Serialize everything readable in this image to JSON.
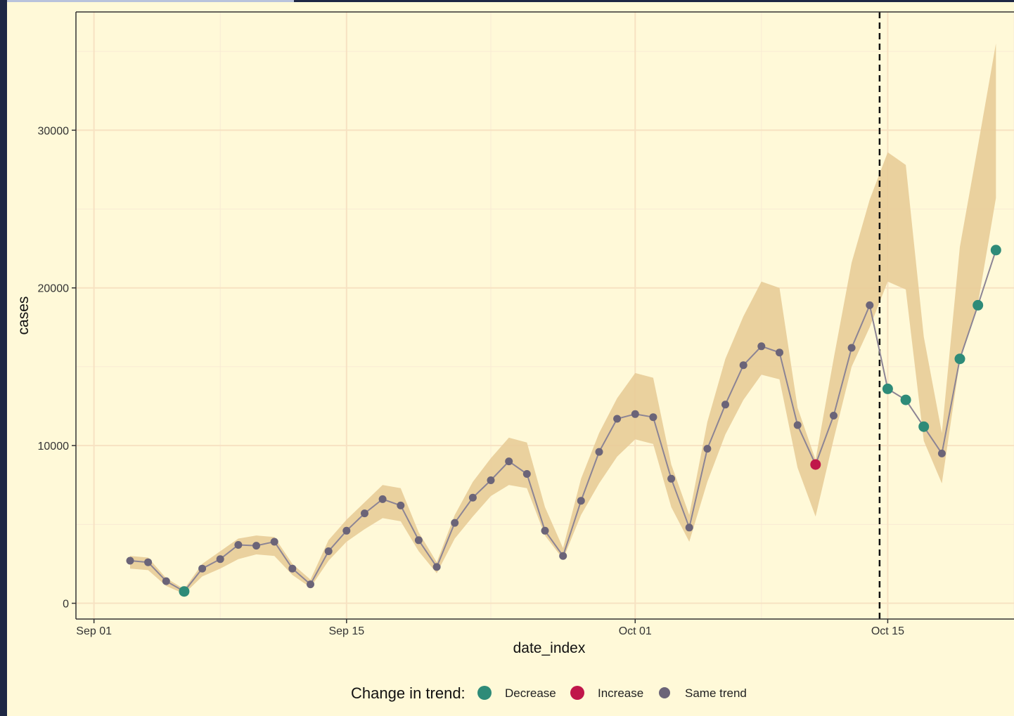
{
  "chart_data": {
    "type": "line",
    "title": "",
    "xlabel": "date_index",
    "ylabel": "cases",
    "x_tick_labels": [
      "Sep 01",
      "Sep 15",
      "Oct 01",
      "Oct 15"
    ],
    "y_tick_labels": [
      "0",
      "10000",
      "20000",
      "30000"
    ],
    "ylim": [
      -1000,
      37500
    ],
    "xlim": [
      "2020-08-31",
      "2020-10-22"
    ],
    "grid": true,
    "vline": {
      "date": "2020-10-14",
      "style": "dashed"
    },
    "legend": {
      "title": "Change in trend:",
      "placement": "bottom",
      "entries": [
        {
          "label": "Decrease",
          "color": "#2e8b78"
        },
        {
          "label": "Increase",
          "color": "#c0164a"
        },
        {
          "label": "Same trend",
          "color": "#6b6478"
        }
      ]
    },
    "colors": {
      "band": "#e8cc98",
      "line": "#8c8494",
      "panel": "#fff9d8",
      "grid": "#f7e2c2"
    },
    "series": [
      {
        "date": "2020-09-03",
        "value": 2700,
        "lower": 2200,
        "upper": 3000,
        "trend": "Same trend"
      },
      {
        "date": "2020-09-04",
        "value": 2600,
        "lower": 2100,
        "upper": 2900,
        "trend": "Same trend"
      },
      {
        "date": "2020-09-05",
        "value": 1400,
        "lower": 1100,
        "upper": 1600,
        "trend": "Same trend"
      },
      {
        "date": "2020-09-06",
        "value": 750,
        "lower": 600,
        "upper": 900,
        "trend": "Decrease"
      },
      {
        "date": "2020-09-07",
        "value": 2200,
        "lower": 1700,
        "upper": 2500,
        "trend": "Same trend"
      },
      {
        "date": "2020-09-08",
        "value": 2800,
        "lower": 2200,
        "upper": 3300,
        "trend": "Same trend"
      },
      {
        "date": "2020-09-09",
        "value": 3700,
        "lower": 2800,
        "upper": 4100,
        "trend": "Same trend"
      },
      {
        "date": "2020-09-10",
        "value": 3650,
        "lower": 3100,
        "upper": 4300,
        "trend": "Same trend"
      },
      {
        "date": "2020-09-11",
        "value": 3900,
        "lower": 3000,
        "upper": 4200,
        "trend": "Same trend"
      },
      {
        "date": "2020-09-12",
        "value": 2200,
        "lower": 1800,
        "upper": 2500,
        "trend": "Same trend"
      },
      {
        "date": "2020-09-13",
        "value": 1200,
        "lower": 1000,
        "upper": 1500,
        "trend": "Same trend"
      },
      {
        "date": "2020-09-14",
        "value": 3300,
        "lower": 2700,
        "upper": 4000,
        "trend": "Same trend"
      },
      {
        "date": "2020-09-15",
        "value": 4600,
        "lower": 3900,
        "upper": 5300,
        "trend": "Same trend"
      },
      {
        "date": "2020-09-16",
        "value": 5700,
        "lower": 4700,
        "upper": 6400,
        "trend": "Same trend"
      },
      {
        "date": "2020-09-17",
        "value": 6600,
        "lower": 5400,
        "upper": 7500,
        "trend": "Same trend"
      },
      {
        "date": "2020-09-18",
        "value": 6200,
        "lower": 5200,
        "upper": 7300,
        "trend": "Same trend"
      },
      {
        "date": "2020-09-19",
        "value": 4000,
        "lower": 3300,
        "upper": 4500,
        "trend": "Same trend"
      },
      {
        "date": "2020-09-20",
        "value": 2300,
        "lower": 1900,
        "upper": 2600,
        "trend": "Same trend"
      },
      {
        "date": "2020-09-21",
        "value": 5100,
        "lower": 4100,
        "upper": 5600,
        "trend": "Same trend"
      },
      {
        "date": "2020-09-22",
        "value": 6700,
        "lower": 5500,
        "upper": 7700,
        "trend": "Same trend"
      },
      {
        "date": "2020-09-23",
        "value": 7800,
        "lower": 6800,
        "upper": 9200,
        "trend": "Same trend"
      },
      {
        "date": "2020-09-24",
        "value": 9000,
        "lower": 7500,
        "upper": 10500,
        "trend": "Same trend"
      },
      {
        "date": "2020-09-25",
        "value": 8200,
        "lower": 7300,
        "upper": 10200,
        "trend": "Same trend"
      },
      {
        "date": "2020-09-26",
        "value": 4600,
        "lower": 4300,
        "upper": 6100,
        "trend": "Same trend"
      },
      {
        "date": "2020-09-27",
        "value": 3000,
        "lower": 2800,
        "upper": 3500,
        "trend": "Same trend"
      },
      {
        "date": "2020-09-28",
        "value": 6500,
        "lower": 5600,
        "upper": 7900,
        "trend": "Same trend"
      },
      {
        "date": "2020-09-29",
        "value": 9600,
        "lower": 7600,
        "upper": 10800,
        "trend": "Same trend"
      },
      {
        "date": "2020-09-30",
        "value": 11700,
        "lower": 9300,
        "upper": 13000,
        "trend": "Same trend"
      },
      {
        "date": "2020-10-01",
        "value": 12000,
        "lower": 10400,
        "upper": 14600,
        "trend": "Same trend"
      },
      {
        "date": "2020-10-02",
        "value": 11800,
        "lower": 10100,
        "upper": 14300,
        "trend": "Same trend"
      },
      {
        "date": "2020-10-03",
        "value": 7900,
        "lower": 6100,
        "upper": 8800,
        "trend": "Same trend"
      },
      {
        "date": "2020-10-04",
        "value": 4800,
        "lower": 3900,
        "upper": 5600,
        "trend": "Same trend"
      },
      {
        "date": "2020-10-05",
        "value": 9800,
        "lower": 7700,
        "upper": 11500,
        "trend": "Same trend"
      },
      {
        "date": "2020-10-06",
        "value": 12600,
        "lower": 10700,
        "upper": 15500,
        "trend": "Same trend"
      },
      {
        "date": "2020-10-07",
        "value": 15100,
        "lower": 12900,
        "upper": 18200,
        "trend": "Same trend"
      },
      {
        "date": "2020-10-08",
        "value": 16300,
        "lower": 14500,
        "upper": 20400,
        "trend": "Same trend"
      },
      {
        "date": "2020-10-09",
        "value": 15900,
        "lower": 14200,
        "upper": 20000,
        "trend": "Same trend"
      },
      {
        "date": "2020-10-10",
        "value": 11300,
        "lower": 8600,
        "upper": 12400,
        "trend": "Same trend"
      },
      {
        "date": "2020-10-11",
        "value": 8800,
        "lower": 5500,
        "upper": 9100,
        "trend": "Increase"
      },
      {
        "date": "2020-10-12",
        "value": 11900,
        "lower": 10400,
        "upper": 15500,
        "trend": "Same trend"
      },
      {
        "date": "2020-10-13",
        "value": 16200,
        "lower": 15000,
        "upper": 21600,
        "trend": "Same trend"
      },
      {
        "date": "2020-10-14",
        "value": 18900,
        "lower": 17500,
        "upper": 25600,
        "trend": "Same trend"
      },
      {
        "date": "2020-10-15",
        "value": 13600,
        "lower": 20400,
        "upper": 28600,
        "trend": "Decrease"
      },
      {
        "date": "2020-10-16",
        "value": 12900,
        "lower": 19900,
        "upper": 27800,
        "trend": "Decrease"
      },
      {
        "date": "2020-10-17",
        "value": 11200,
        "lower": 10300,
        "upper": 16900,
        "trend": "Decrease"
      },
      {
        "date": "2020-10-18",
        "value": 9500,
        "lower": 7600,
        "upper": 10800,
        "trend": "Same trend"
      },
      {
        "date": "2020-10-19",
        "value": 15500,
        "lower": 15400,
        "upper": 22600,
        "trend": "Decrease"
      },
      {
        "date": "2020-10-20",
        "value": 18900,
        "lower": 19000,
        "upper": 29000,
        "trend": "Decrease"
      },
      {
        "date": "2020-10-21",
        "value": 22400,
        "lower": 25700,
        "upper": 35500,
        "trend": "Decrease"
      }
    ]
  }
}
